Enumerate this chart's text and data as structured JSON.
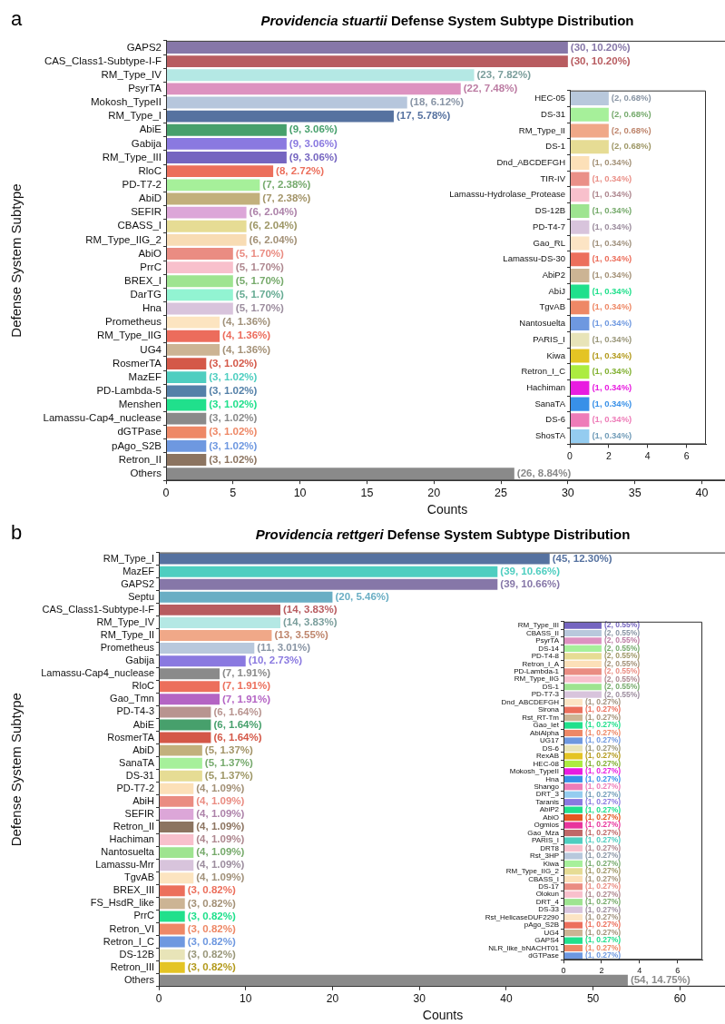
{
  "chart_data": [
    {
      "type": "bar",
      "orientation": "horizontal",
      "title": "Providencia stuartii Defense System Subtype Distribution",
      "xlabel": "Counts",
      "ylabel": "Defense System Subtype",
      "annotations": [
        "a"
      ],
      "xlim": [
        0,
        42
      ],
      "xticks": [
        0,
        5,
        10,
        15,
        20,
        25,
        30,
        35,
        40
      ],
      "categories": [
        "GAPS2",
        "CAS_Class1-Subtype-I-F",
        "RM_Type_IV",
        "PsyrTA",
        "Mokosh_TypeII",
        "RM_Type_I",
        "AbiE",
        "Gabija",
        "RM_Type_III",
        "RloC",
        "PD-T7-2",
        "AbiD",
        "SEFIR",
        "CBASS_I",
        "RM_Type_IIG_2",
        "AbiO",
        "PrrC",
        "BREX_I",
        "DarTG",
        "Hna",
        "Prometheus",
        "RM_Type_IIG",
        "UG4",
        "RosmerTA",
        "MazEF",
        "PD-Lambda-5",
        "Menshen",
        "Lamassu-Cap4_nuclease",
        "dGTPase",
        "pAgo_S2B",
        "Retron_II",
        "Others"
      ],
      "values": [
        30,
        30,
        23,
        22,
        18,
        17,
        9,
        9,
        9,
        8,
        7,
        7,
        6,
        6,
        6,
        5,
        5,
        5,
        5,
        5,
        4,
        4,
        4,
        3,
        3,
        3,
        3,
        3,
        3,
        3,
        3,
        26
      ],
      "value_labels": [
        "(30, 10.20%)",
        "(30, 10.20%)",
        "(23, 7.82%)",
        "(22, 7.48%)",
        "(18, 6.12%)",
        "(17, 5.78%)",
        "(9, 3.06%)",
        "(9, 3.06%)",
        "(9, 3.06%)",
        "(8, 2.72%)",
        "(7, 2.38%)",
        "(7, 2.38%)",
        "(6, 2.04%)",
        "(6, 2.04%)",
        "(6, 2.04%)",
        "(5, 1.70%)",
        "(5, 1.70%)",
        "(5, 1.70%)",
        "(5, 1.70%)",
        "(5, 1.70%)",
        "(4, 1.36%)",
        "(4, 1.36%)",
        "(4, 1.36%)",
        "(3, 1.02%)",
        "(3, 1.02%)",
        "(3, 1.02%)",
        "(3, 1.02%)",
        "(3, 1.02%)",
        "(3, 1.02%)",
        "(3, 1.02%)",
        "(3, 1.02%)",
        "(26, 8.84%)"
      ],
      "colors": [
        "#8677a8",
        "#b85c60",
        "#b4e8e4",
        "#dd92c0",
        "#b6c6dc",
        "#5672a0",
        "#47a06c",
        "#8a79e0",
        "#7565c0",
        "#ec6f5c",
        "#a6f09a",
        "#c2b07c",
        "#dca6d8",
        "#e6dc94",
        "#f8dcb4",
        "#ea8c82",
        "#f8c0cc",
        "#9ee490",
        "#92f4d2",
        "#d8c4dc",
        "#fce4c0",
        "#ec6c5c",
        "#ccb494",
        "#d45848",
        "#4ecec0",
        "#5480a8",
        "#20e08c",
        "#8a8a8a",
        "#ee8866",
        "#6e98e0",
        "#8c7460",
        "#8a8a8a"
      ]
    },
    {
      "type": "bar",
      "orientation": "horizontal",
      "xlim": [
        0,
        7
      ],
      "xticks": [
        0,
        2,
        4,
        6
      ],
      "categories": [
        "HEC-05",
        "DS-31",
        "RM_Type_II",
        "DS-1",
        "Dnd_ABCDEFGH",
        "TIR-IV",
        "Lamassu-Hydrolase_Protease",
        "DS-12B",
        "PD-T4-7",
        "Gao_RL",
        "Lamassu-DS-30",
        "AbiP2",
        "AbiJ",
        "TgvAB",
        "Nantosuelta",
        "PARIS_I",
        "Kiwa",
        "Retron_I_C",
        "Hachiman",
        "SanaTA",
        "DS-6",
        "ShosTA"
      ],
      "values": [
        2,
        2,
        2,
        2,
        1,
        1,
        1,
        1,
        1,
        1,
        1,
        1,
        1,
        1,
        1,
        1,
        1,
        1,
        1,
        1,
        1,
        1
      ],
      "value_labels": [
        "(2, 0.68%)",
        "(2, 0.68%)",
        "(2, 0.68%)",
        "(2, 0.68%)",
        "(1, 0.34%)",
        "(1, 0.34%)",
        "(1, 0.34%)",
        "(1, 0.34%)",
        "(1, 0.34%)",
        "(1, 0.34%)",
        "(1, 0.34%)",
        "(1, 0.34%)",
        "(1, 0.34%)",
        "(1, 0.34%)",
        "(1, 0.34%)",
        "(1, 0.34%)",
        "(1, 0.34%)",
        "(1, 0.34%)",
        "(1, 0.34%)",
        "(1, 0.34%)",
        "(1, 0.34%)",
        "(1, 0.34%)"
      ],
      "colors": [
        "#b8c8dc",
        "#a6f09a",
        "#f0a888",
        "#e6dc94",
        "#fce0b8",
        "#ea9088",
        "#f8c0cc",
        "#9ee490",
        "#d8c4dc",
        "#fce4c4",
        "#ec6f5c",
        "#ccb494",
        "#20e08c",
        "#ee8866",
        "#6e98e0",
        "#e8e4b8",
        "#e4c424",
        "#acec40",
        "#e81ce0",
        "#3890e8",
        "#ee7cb8",
        "#94ccf0"
      ]
    },
    {
      "type": "bar",
      "orientation": "horizontal",
      "title": "Providencia rettgeri Defense System Subtype Distribution",
      "xlabel": "Counts",
      "ylabel": "Defense System Subtype",
      "annotations": [
        "b"
      ],
      "xlim": [
        0,
        65.4
      ],
      "xticks": [
        0,
        10,
        20,
        30,
        40,
        50,
        60
      ],
      "categories": [
        "RM_Type_I",
        "MazEF",
        "GAPS2",
        "Septu",
        "CAS_Class1-Subtype-I-F",
        "RM_Type_IV",
        "RM_Type_II",
        "Prometheus",
        "Gabija",
        "Lamassu-Cap4_nuclease",
        "RloC",
        "Gao_Tmn",
        "PD-T4-3",
        "AbiE",
        "RosmerTA",
        "AbiD",
        "SanaTA",
        "DS-31",
        "PD-T7-2",
        "AbiH",
        "SEFIR",
        "Retron_II",
        "Hachiman",
        "Nantosuelta",
        "Lamassu-Mrr",
        "TgvAB",
        "BREX_III",
        "FS_HsdR_like",
        "PrrC",
        "Retron_VI",
        "Retron_I_C",
        "DS-12B",
        "Retron_III",
        "Others"
      ],
      "values": [
        45,
        39,
        39,
        20,
        14,
        14,
        13,
        11,
        10,
        7,
        7,
        7,
        6,
        6,
        6,
        5,
        5,
        5,
        4,
        4,
        4,
        4,
        4,
        4,
        4,
        4,
        3,
        3,
        3,
        3,
        3,
        3,
        3,
        54
      ],
      "value_labels": [
        "(45, 12.30%)",
        "(39, 10.66%)",
        "(39, 10.66%)",
        "(20, 5.46%)",
        "(14, 3.83%)",
        "(14, 3.83%)",
        "(13, 3.55%)",
        "(11, 3.01%)",
        "(10, 2.73%)",
        "(7, 1.91%)",
        "(7, 1.91%)",
        "(7, 1.91%)",
        "(6, 1.64%)",
        "(6, 1.64%)",
        "(6, 1.64%)",
        "(5, 1.37%)",
        "(5, 1.37%)",
        "(5, 1.37%)",
        "(4, 1.09%)",
        "(4, 1.09%)",
        "(4, 1.09%)",
        "(4, 1.09%)",
        "(4, 1.09%)",
        "(4, 1.09%)",
        "(4, 1.09%)",
        "(4, 1.09%)",
        "(3, 0.82%)",
        "(3, 0.82%)",
        "(3, 0.82%)",
        "(3, 0.82%)",
        "(3, 0.82%)",
        "(3, 0.82%)",
        "(3, 0.82%)",
        "(54, 14.75%)"
      ],
      "colors": [
        "#5672a0",
        "#4ecec0",
        "#8677a8",
        "#6aaec4",
        "#b85c60",
        "#b4e8e4",
        "#f0a888",
        "#b8c8dc",
        "#8a79e0",
        "#8a8a8a",
        "#ec6f5c",
        "#b464c4",
        "#b89490",
        "#47a06c",
        "#d45848",
        "#c2b07c",
        "#a6f09a",
        "#e6dc94",
        "#fce0b8",
        "#ea8c82",
        "#dca6d8",
        "#8c7460",
        "#f8c0cc",
        "#9ee490",
        "#d8c4dc",
        "#fce4c0",
        "#ec6f5c",
        "#ccb494",
        "#20e08c",
        "#ee8866",
        "#6e98e0",
        "#e8e4b8",
        "#e4c424",
        "#8a8a8a"
      ]
    },
    {
      "type": "bar",
      "orientation": "horizontal",
      "xlim": [
        0,
        7.3
      ],
      "xticks": [
        0,
        2,
        4,
        6
      ],
      "categories": [
        "RM_Type_III",
        "CBASS_II",
        "PsyrTA",
        "DS-14",
        "PD-T4-8",
        "Retron_I_A",
        "PD-Lambda-1",
        "RM_Type_IIG",
        "DS-1",
        "PD-T7-3",
        "Dnd_ABCDEFGH",
        "Sirona",
        "Rst_RT-Tm",
        "Gao_Iet",
        "AbiAlpha",
        "UG17",
        "DS-6",
        "RexAB",
        "HEC-08",
        "Mokosh_TypeII",
        "Hna",
        "Shango",
        "DRT_3",
        "Taranis",
        "AbiP2",
        "AbiO",
        "Ogmios",
        "Gao_Mza",
        "PARIS_I",
        "DRT8",
        "Rst_3HP",
        "Kiwa",
        "RM_Type_IIG_2",
        "CBASS_I",
        "DS-17",
        "Olokun",
        "DRT_4",
        "DS-33",
        "Rst_HelicaseDUF2290",
        "pAgo_S2B",
        "UG4",
        "GAPS4",
        "NLR_like_bNACHT01",
        "dGTPase"
      ],
      "values": [
        2,
        2,
        2,
        2,
        2,
        2,
        2,
        2,
        2,
        2,
        1,
        1,
        1,
        1,
        1,
        1,
        1,
        1,
        1,
        1,
        1,
        1,
        1,
        1,
        1,
        1,
        1,
        1,
        1,
        1,
        1,
        1,
        1,
        1,
        1,
        1,
        1,
        1,
        1,
        1,
        1,
        1,
        1,
        1
      ],
      "value_labels": [
        "(2, 0.55%)",
        "(2, 0.55%)",
        "(2, 0.55%)",
        "(2, 0.55%)",
        "(2, 0.55%)",
        "(2, 0.55%)",
        "(2, 0.55%)",
        "(2, 0.55%)",
        "(2, 0.55%)",
        "(2, 0.55%)",
        "(1, 0.27%)",
        "(1, 0.27%)",
        "(1, 0.27%)",
        "(1, 0.27%)",
        "(1, 0.27%)",
        "(1, 0.27%)",
        "(1, 0.27%)",
        "(1, 0.27%)",
        "(1, 0.27%)",
        "(1, 0.27%)",
        "(1, 0.27%)",
        "(1, 0.27%)",
        "(1, 0.27%)",
        "(1, 0.27%)",
        "(1, 0.27%)",
        "(1, 0.27%)",
        "(1, 0.27%)",
        "(1, 0.27%)",
        "(1, 0.27%)",
        "(1, 0.27%)",
        "(1, 0.27%)",
        "(1, 0.27%)",
        "(1, 0.27%)",
        "(1, 0.27%)",
        "(1, 0.27%)",
        "(1, 0.27%)",
        "(1, 0.27%)",
        "(1, 0.27%)",
        "(1, 0.27%)",
        "(1, 0.27%)",
        "(1, 0.27%)",
        "(1, 0.27%)",
        "(1, 0.27%)",
        "(1, 0.27%)"
      ],
      "colors": [
        "#7565c0",
        "#b8c8dc",
        "#dd92c0",
        "#a6f09a",
        "#e6dc94",
        "#fce0b8",
        "#ea8c82",
        "#f8c0cc",
        "#9ee490",
        "#d8c4dc",
        "#fce4c4",
        "#ec6f5c",
        "#ccb494",
        "#20e08c",
        "#ee8866",
        "#6e98e0",
        "#e8e4b8",
        "#e4c424",
        "#acec40",
        "#e81ce0",
        "#3890e8",
        "#ee7cb8",
        "#94ccf0",
        "#8a79e0",
        "#20e08c",
        "#e45820",
        "#e8349c",
        "#c06868",
        "#4ecec0",
        "#f8c0cc",
        "#b8c8dc",
        "#a6f09a",
        "#e6dc94",
        "#fce0b8",
        "#ea8c82",
        "#f8c0cc",
        "#9ee490",
        "#d8c4dc",
        "#fce4c4",
        "#ec6f5c",
        "#ccb494",
        "#20e08c",
        "#ee8866",
        "#6e98e0"
      ]
    }
  ]
}
